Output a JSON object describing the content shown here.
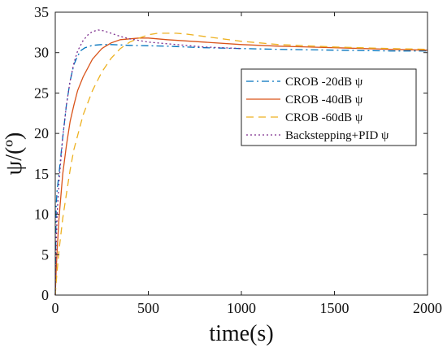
{
  "chart_data": {
    "type": "line",
    "xlabel": "time(s)",
    "ylabel": "ψ/(º)",
    "xlim": [
      0,
      2000
    ],
    "ylim": [
      0,
      35
    ],
    "xticks": [
      0,
      500,
      1000,
      1500,
      2000
    ],
    "yticks": [
      0,
      5,
      10,
      15,
      20,
      25,
      30,
      35
    ],
    "grid": false,
    "legend_position": "right",
    "series": [
      {
        "name": "CROB -20dB ψ",
        "color": "#0072BD",
        "style": "dashdot",
        "x": [
          0,
          5,
          10,
          20,
          40,
          60,
          80,
          100,
          120,
          140,
          160,
          200,
          250,
          300,
          400,
          600,
          800,
          1000,
          1200,
          1500,
          1800,
          2000
        ],
        "y": [
          0,
          11,
          13,
          15,
          19.5,
          23.5,
          26.5,
          28.5,
          29.6,
          30.3,
          30.6,
          30.9,
          31.0,
          31.0,
          30.9,
          30.8,
          30.6,
          30.5,
          30.4,
          30.3,
          30.2,
          30.2
        ]
      },
      {
        "name": "CROB -40dB ψ",
        "color": "#D95319",
        "style": "solid",
        "x": [
          0,
          5,
          10,
          20,
          40,
          60,
          80,
          100,
          120,
          150,
          200,
          250,
          300,
          350,
          400,
          450,
          500,
          600,
          800,
          1000,
          1200,
          1500,
          1800,
          2000
        ],
        "y": [
          0,
          3,
          5.5,
          9.5,
          15,
          18.5,
          21.5,
          23.5,
          25.3,
          27.0,
          29.2,
          30.5,
          31.2,
          31.6,
          31.7,
          31.8,
          31.8,
          31.6,
          31.3,
          31.0,
          30.8,
          30.6,
          30.4,
          30.3
        ]
      },
      {
        "name": "CROB -60dB ψ",
        "color": "#EDB120",
        "style": "dashed",
        "x": [
          0,
          5,
          10,
          20,
          40,
          60,
          80,
          100,
          150,
          200,
          250,
          300,
          350,
          400,
          450,
          500,
          550,
          600,
          650,
          700,
          800,
          1000,
          1200,
          1500,
          1800,
          2000
        ],
        "y": [
          0,
          1.5,
          3,
          5.5,
          9.5,
          12.5,
          15.5,
          18,
          22.3,
          25.3,
          27.6,
          29.3,
          30.5,
          31.3,
          31.8,
          32.2,
          32.4,
          32.4,
          32.4,
          32.3,
          32.0,
          31.4,
          31.0,
          30.7,
          30.5,
          30.4
        ]
      },
      {
        "name": "Backstepping+PID ψ",
        "color": "#7E2F8E",
        "style": "dotted",
        "x": [
          0,
          5,
          10,
          20,
          40,
          60,
          80,
          100,
          120,
          150,
          180,
          200,
          230,
          260,
          300,
          350,
          400,
          450,
          500,
          600,
          700,
          800,
          900,
          1000
        ],
        "y": [
          0,
          6,
          10,
          14,
          19.5,
          23.5,
          26.5,
          28.7,
          30.2,
          31.5,
          32.3,
          32.6,
          32.8,
          32.7,
          32.4,
          32.0,
          31.7,
          31.5,
          31.3,
          31.1,
          30.9,
          30.7,
          30.6,
          30.5
        ]
      }
    ]
  }
}
